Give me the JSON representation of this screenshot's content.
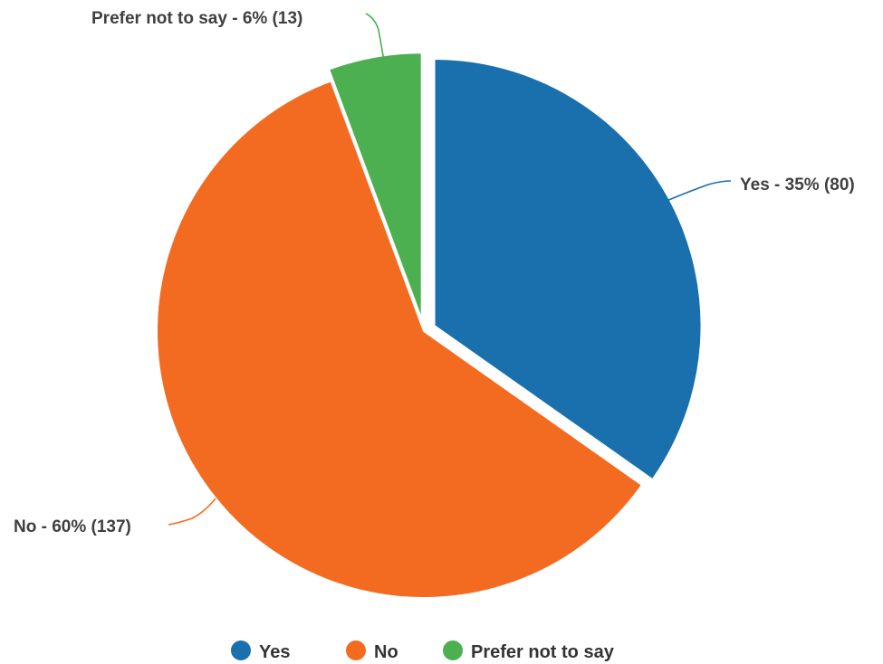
{
  "chart_data": {
    "type": "pie",
    "title": "",
    "slices": [
      {
        "label": "Yes",
        "value": 80,
        "percent": 35,
        "color": "#1a6fad",
        "annotation": "Yes - 35% (80)"
      },
      {
        "label": "No",
        "value": 137,
        "percent": 60,
        "color": "#f26b21",
        "annotation": "No - 60% (137)"
      },
      {
        "label": "Prefer not to say",
        "value": 13,
        "percent": 6,
        "color": "#4caf50",
        "annotation": "Prefer not to say - 6% (13)"
      }
    ],
    "legend": {
      "position": "bottom",
      "items": [
        "Yes",
        "No",
        "Prefer not to say"
      ]
    },
    "exploded_slices": [
      "Yes",
      "Prefer not to say"
    ]
  }
}
